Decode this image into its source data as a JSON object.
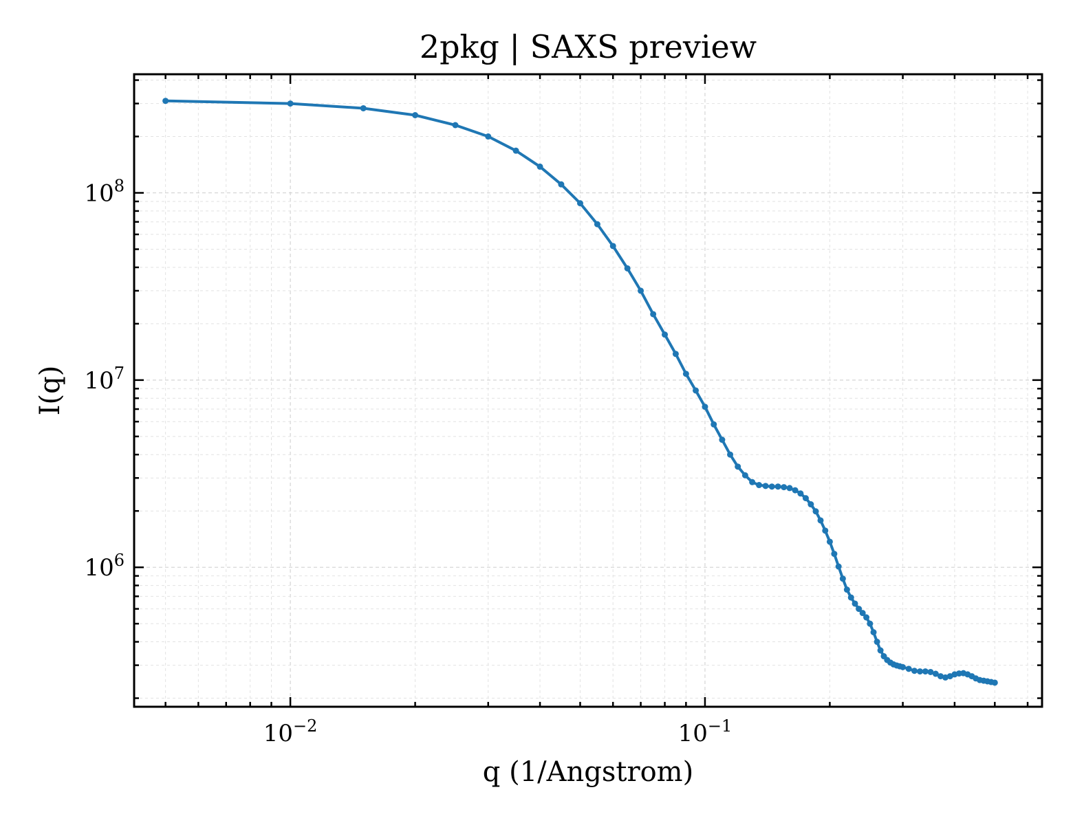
{
  "chart_data": {
    "type": "line",
    "title": "2pkg | SAXS preview",
    "xlabel": "q (1/Angstrom)",
    "ylabel": "I(q)",
    "xscale": "log",
    "yscale": "log",
    "xlim": [
      0.0042,
      0.65
    ],
    "ylim": [
      180000,
      430000000
    ],
    "x_ticks": [
      {
        "value": 0.01,
        "base": "10",
        "exp": "−2"
      },
      {
        "value": 0.1,
        "base": "10",
        "exp": "−1"
      }
    ],
    "y_ticks": [
      {
        "value": 1000000,
        "base": "10",
        "exp": "6"
      },
      {
        "value": 10000000,
        "base": "10",
        "exp": "7"
      },
      {
        "value": 100000000,
        "base": "10",
        "exp": "8"
      }
    ],
    "grid": true,
    "tick_direction": "in",
    "color": "#1f77b4",
    "series": [
      {
        "x": [
          0.005,
          0.01,
          0.015,
          0.02,
          0.025,
          0.03,
          0.035,
          0.04,
          0.045,
          0.05,
          0.055,
          0.06,
          0.065,
          0.07,
          0.075,
          0.08,
          0.085,
          0.09,
          0.095,
          0.1,
          0.105,
          0.11,
          0.115,
          0.12,
          0.125,
          0.13,
          0.135,
          0.14,
          0.145,
          0.15,
          0.155,
          0.16,
          0.165,
          0.17,
          0.175,
          0.18,
          0.185,
          0.19,
          0.195,
          0.2,
          0.205,
          0.21,
          0.215,
          0.22,
          0.225,
          0.23,
          0.235,
          0.24,
          0.245,
          0.25,
          0.255,
          0.26,
          0.265,
          0.27,
          0.275,
          0.28,
          0.285,
          0.29,
          0.295,
          0.3,
          0.31,
          0.32,
          0.33,
          0.34,
          0.35,
          0.36,
          0.37,
          0.38,
          0.39,
          0.4,
          0.41,
          0.42,
          0.43,
          0.44,
          0.45,
          0.46,
          0.47,
          0.48,
          0.49,
          0.5
        ],
        "y": [
          310000000,
          300000000,
          283000000,
          260000000,
          230000000,
          200000000,
          168000000,
          138000000,
          111000000,
          88000000,
          68000000,
          52000000,
          39500000,
          30000000,
          22500000,
          17500000,
          13800000,
          10800000,
          8800000,
          7200000,
          5800000,
          4800000,
          4000000,
          3450000,
          3100000,
          2850000,
          2750000,
          2720000,
          2700000,
          2700000,
          2680000,
          2650000,
          2580000,
          2480000,
          2340000,
          2170000,
          1990000,
          1780000,
          1570000,
          1370000,
          1180000,
          1010000,
          870000,
          760000,
          690000,
          640000,
          600000,
          570000,
          540000,
          500000,
          450000,
          400000,
          360000,
          335000,
          320000,
          310000,
          303000,
          299000,
          296000,
          293000,
          287000,
          280000,
          278000,
          278000,
          276000,
          270000,
          262000,
          258000,
          262000,
          268000,
          271000,
          272000,
          268000,
          262000,
          255000,
          250000,
          248000,
          246000,
          244000,
          242000
        ]
      }
    ]
  }
}
